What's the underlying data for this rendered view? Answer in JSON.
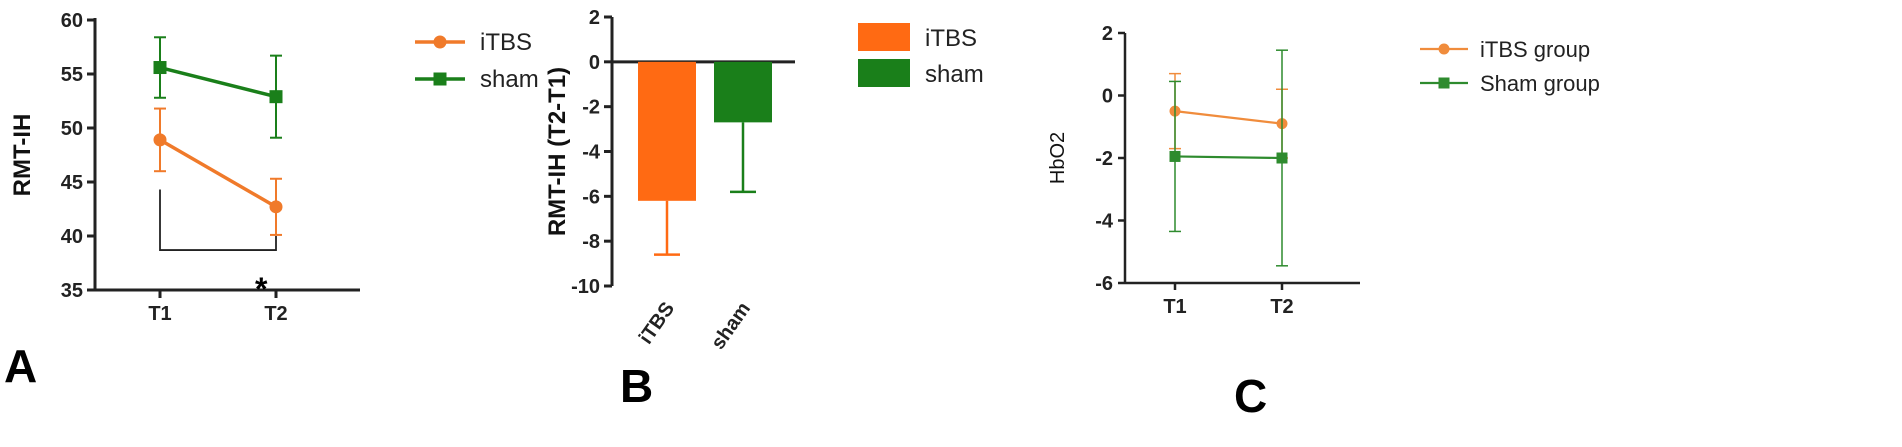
{
  "colors": {
    "orange": "#ff6a13",
    "orange_line": "#f07a2a",
    "green": "#1a7f1a",
    "axis": "#222222"
  },
  "panels": [
    {
      "label": "A"
    },
    {
      "label": "B"
    },
    {
      "label": "C"
    }
  ],
  "significance": "*",
  "chart_data": [
    {
      "type": "line",
      "panel": "A",
      "categories": [
        "T1",
        "T2"
      ],
      "ylabel": "RMT-IH",
      "ylim": [
        35,
        60
      ],
      "yticks": [
        35,
        40,
        45,
        50,
        55,
        60
      ],
      "legend_position": "right",
      "series": [
        {
          "name": "iTBS",
          "marker": "circle",
          "color": "#f07a2a",
          "values": [
            48.9,
            42.7
          ],
          "err": [
            2.9,
            2.6
          ]
        },
        {
          "name": "sham",
          "marker": "square",
          "color": "#1a7f1a",
          "values": [
            55.6,
            52.9
          ],
          "err": [
            2.8,
            3.8
          ]
        }
      ],
      "annotation": "*"
    },
    {
      "type": "bar",
      "panel": "B",
      "categories": [
        "iTBS",
        "sham"
      ],
      "ylabel": "RMT-IH (T2-T1)",
      "ylim": [
        -10,
        2
      ],
      "yticks": [
        -10,
        -8,
        -6,
        -4,
        -2,
        0,
        2
      ],
      "legend_position": "right",
      "series": [
        {
          "name": "iTBS",
          "color": "#ff6a13",
          "value": -6.2,
          "err": 2.4
        },
        {
          "name": "sham",
          "color": "#1a7f1a",
          "value": -2.7,
          "err": 3.1
        }
      ]
    },
    {
      "type": "line",
      "panel": "C",
      "categories": [
        "T1",
        "T2"
      ],
      "ylabel": "HbO2",
      "ylim": [
        -6,
        2
      ],
      "yticks": [
        -6,
        -4,
        -2,
        0,
        2
      ],
      "legend_position": "right",
      "series": [
        {
          "name": "iTBS group",
          "marker": "circle",
          "color": "#f08c3c",
          "values": [
            -0.5,
            -0.9
          ],
          "err": [
            1.2,
            1.1
          ]
        },
        {
          "name": "Sham group",
          "marker": "square",
          "color": "#2e8b2e",
          "values": [
            -1.95,
            -2.0
          ],
          "err": [
            2.4,
            3.45
          ]
        }
      ]
    }
  ]
}
